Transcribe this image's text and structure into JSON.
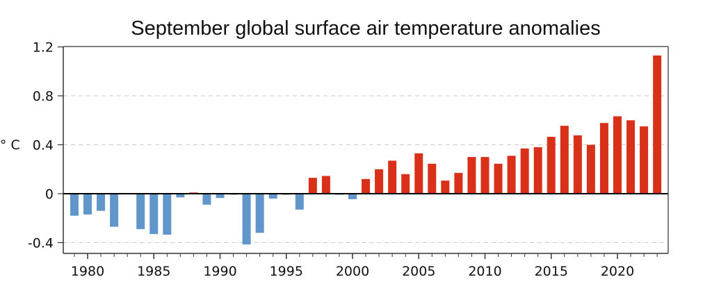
{
  "chart_data": {
    "type": "bar",
    "title": "September global surface air temperature anomalies",
    "xlabel": "",
    "ylabel": "° C",
    "ylim": [
      -0.48,
      1.2
    ],
    "xlim": [
      1978.2,
      2023.8
    ],
    "yticks": [
      -0.4,
      0,
      0.4,
      0.8,
      1.2
    ],
    "ytick_labels": [
      "-0.4",
      "0",
      "0.4",
      "0.8",
      "1.2"
    ],
    "xticks": [
      1980,
      1985,
      1990,
      1995,
      2000,
      2005,
      2010,
      2015,
      2020
    ],
    "xtick_labels": [
      "1980",
      "1985",
      "1990",
      "1995",
      "2000",
      "2005",
      "2010",
      "2015",
      "2020"
    ],
    "grid": "horizontal dashed",
    "colors": {
      "positive": "#d9301a",
      "negative": "#6196cb"
    },
    "categories": [
      1979,
      1980,
      1981,
      1982,
      1983,
      1984,
      1985,
      1986,
      1987,
      1988,
      1989,
      1990,
      1991,
      1992,
      1993,
      1994,
      1995,
      1996,
      1997,
      1998,
      1999,
      2000,
      2001,
      2002,
      2003,
      2004,
      2005,
      2006,
      2007,
      2008,
      2009,
      2010,
      2011,
      2012,
      2013,
      2014,
      2015,
      2016,
      2017,
      2018,
      2019,
      2020,
      2021,
      2022,
      2023
    ],
    "values": [
      -0.18,
      -0.17,
      -0.14,
      -0.27,
      0.0,
      -0.29,
      -0.33,
      -0.335,
      -0.03,
      0.01,
      -0.09,
      -0.035,
      -0.005,
      -0.415,
      -0.32,
      -0.04,
      -0.005,
      -0.13,
      0.13,
      0.145,
      -0.005,
      -0.045,
      0.12,
      0.2,
      0.27,
      0.16,
      0.33,
      0.245,
      0.107,
      0.17,
      0.3,
      0.3,
      0.245,
      0.31,
      0.37,
      0.38,
      0.465,
      0.555,
      0.477,
      0.4,
      0.578,
      0.633,
      0.6,
      0.55,
      1.13
    ]
  }
}
